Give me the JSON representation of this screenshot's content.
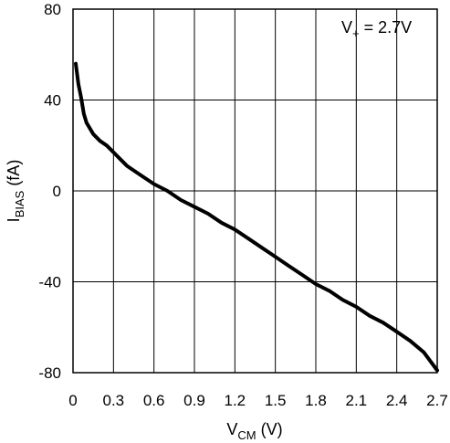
{
  "chart_data": {
    "type": "line",
    "xlabel_main": "V",
    "xlabel_sub": "CM",
    "xlabel_unit": " (V)",
    "ylabel_main": "I",
    "ylabel_sub": "BIAS",
    "ylabel_unit": " (fA)",
    "annotation_main": "V",
    "annotation_sub": "+",
    "annotation_rest": " = 2.7V",
    "xlim": [
      0,
      2.7
    ],
    "ylim": [
      -80,
      80
    ],
    "x_ticks": [
      0,
      0.3,
      0.6,
      0.9,
      1.2,
      1.5,
      1.8,
      2.1,
      2.4,
      2.7
    ],
    "x_tick_labels": [
      "0",
      "0.3",
      "0.6",
      "0.9",
      "1.2",
      "1.5",
      "1.8",
      "2.1",
      "2.4",
      "2.7"
    ],
    "y_ticks": [
      80,
      40,
      0,
      -40,
      -80
    ],
    "y_tick_labels": [
      "80",
      "40",
      "0",
      "-40",
      "-80"
    ],
    "grid": true,
    "line_color": "#000000",
    "series": [
      {
        "x": [
          0.02,
          0.04,
          0.06,
          0.08,
          0.1,
          0.15,
          0.2,
          0.25,
          0.3,
          0.35,
          0.4,
          0.5,
          0.6,
          0.7,
          0.8,
          0.9,
          1.0,
          1.1,
          1.2,
          1.3,
          1.4,
          1.5,
          1.6,
          1.7,
          1.8,
          1.9,
          2.0,
          2.1,
          2.2,
          2.3,
          2.4,
          2.5,
          2.6,
          2.7
        ],
        "y": [
          56,
          47,
          41,
          34,
          30,
          25,
          22,
          20,
          17,
          14,
          11,
          7,
          3,
          0,
          -4,
          -7,
          -10,
          -14,
          -17,
          -21,
          -25,
          -29,
          -33,
          -37,
          -41,
          -44,
          -48,
          -51,
          -55,
          -58,
          -62,
          -66,
          -71,
          -79
        ]
      }
    ]
  }
}
